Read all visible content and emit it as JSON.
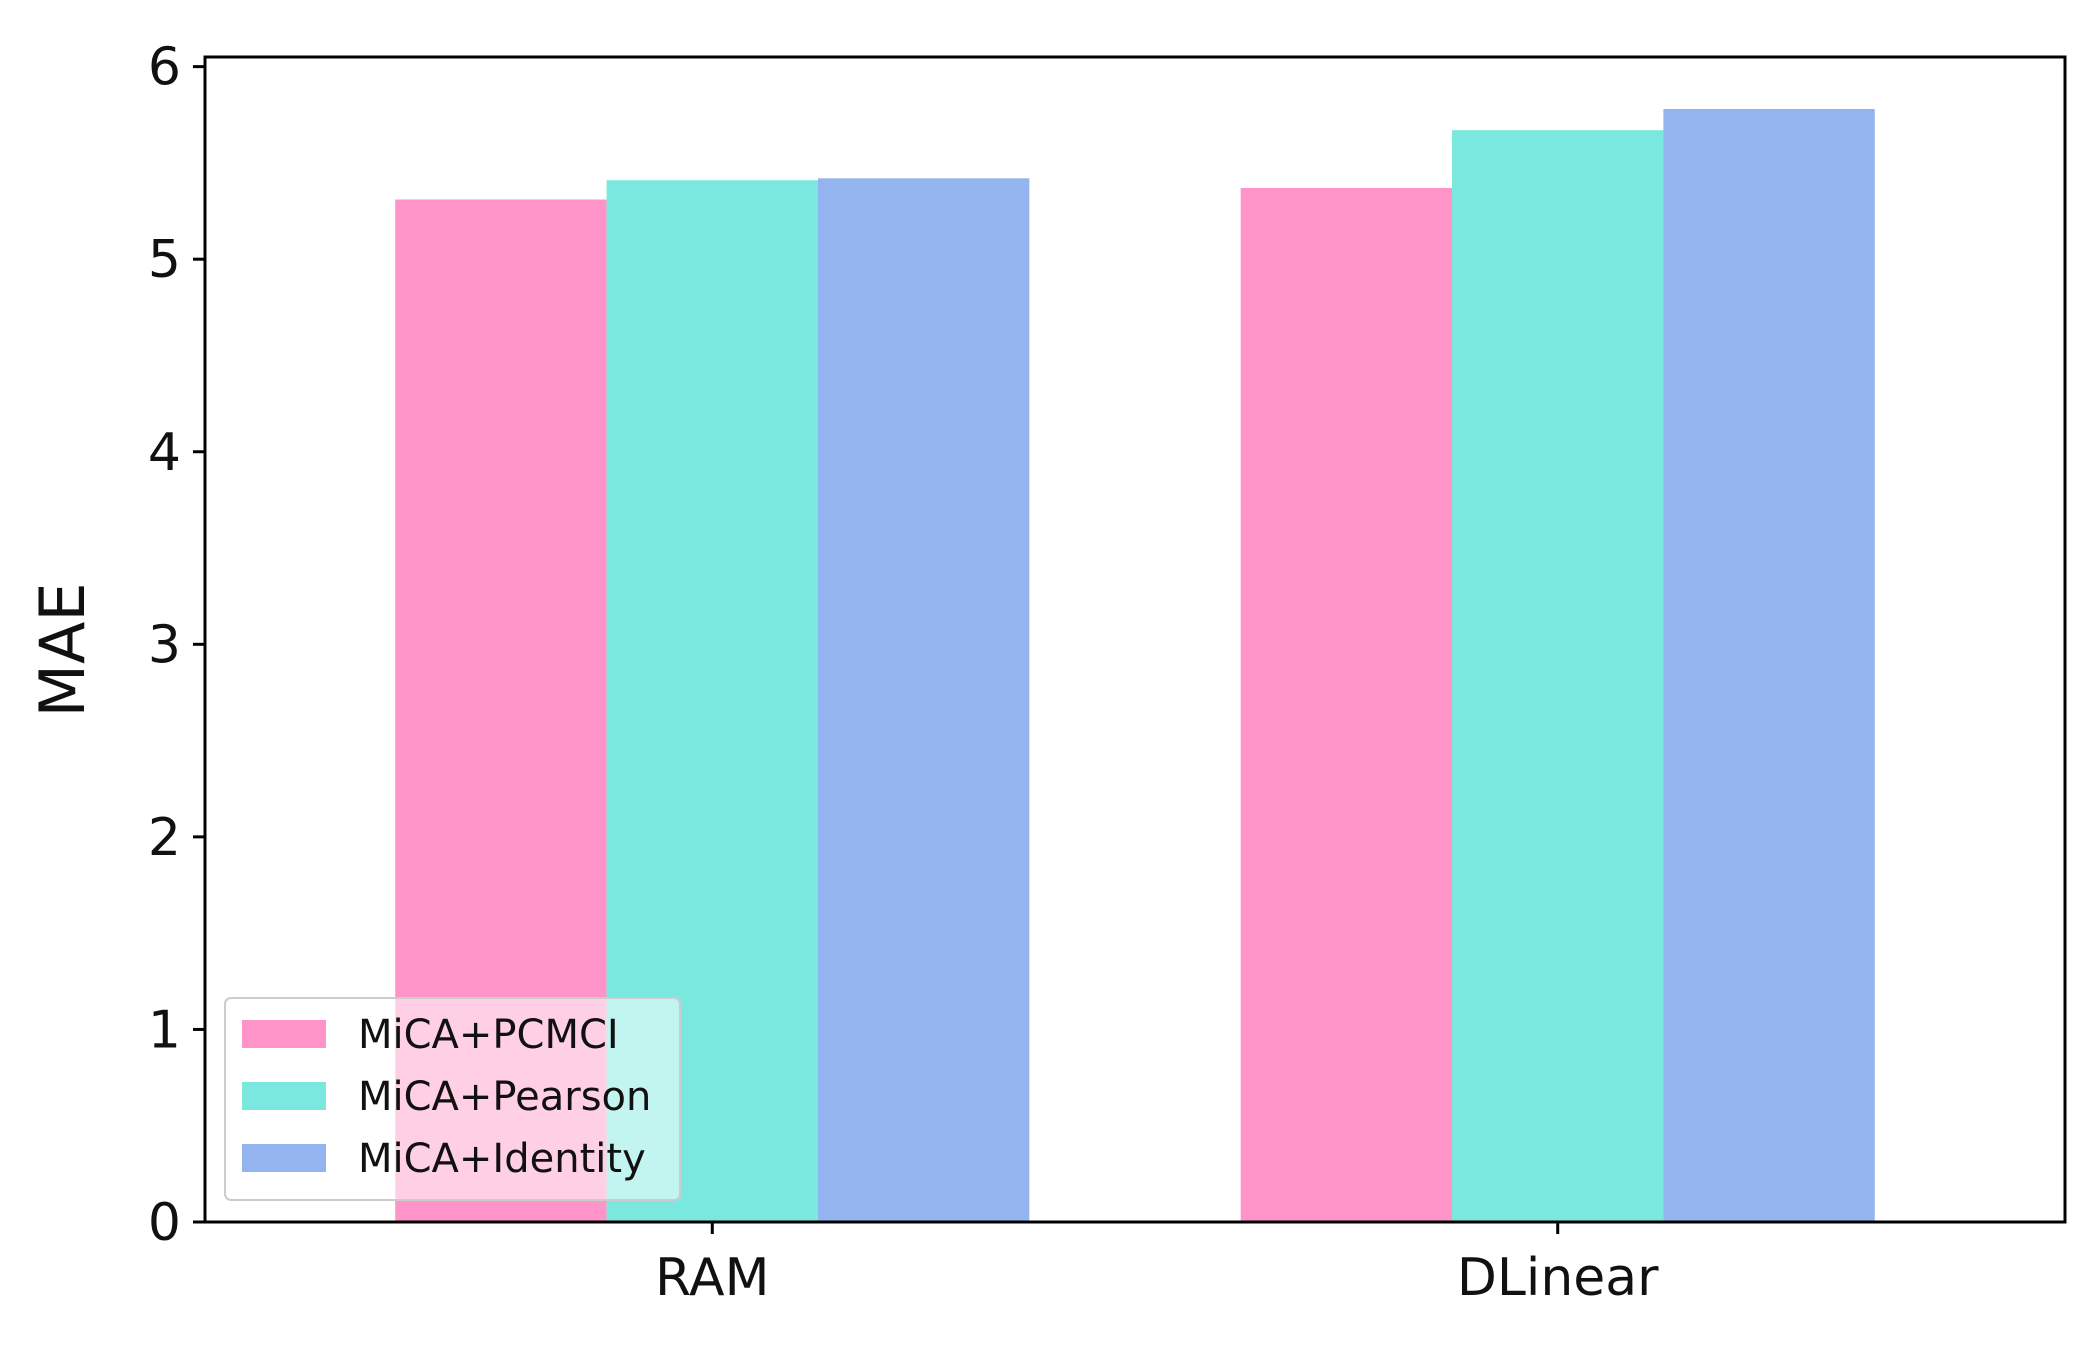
{
  "chart_data": {
    "type": "bar",
    "categories": [
      "RAM",
      "DLinear"
    ],
    "series": [
      {
        "name": "MiCA+PCMCI",
        "values": [
          5.31,
          5.37
        ],
        "color": "#ff94c8"
      },
      {
        "name": "MiCA+Pearson",
        "values": [
          5.41,
          5.67
        ],
        "color": "#7ae8de"
      },
      {
        "name": "MiCA+Identity",
        "values": [
          5.42,
          5.78
        ],
        "color": "#94b4f0"
      }
    ],
    "xlabel": "",
    "ylabel": "MAE",
    "ylim": [
      0,
      6.05
    ],
    "yticks": [
      0,
      1,
      2,
      3,
      4,
      5,
      6
    ],
    "grid": false,
    "legend_position": "lower-left"
  }
}
